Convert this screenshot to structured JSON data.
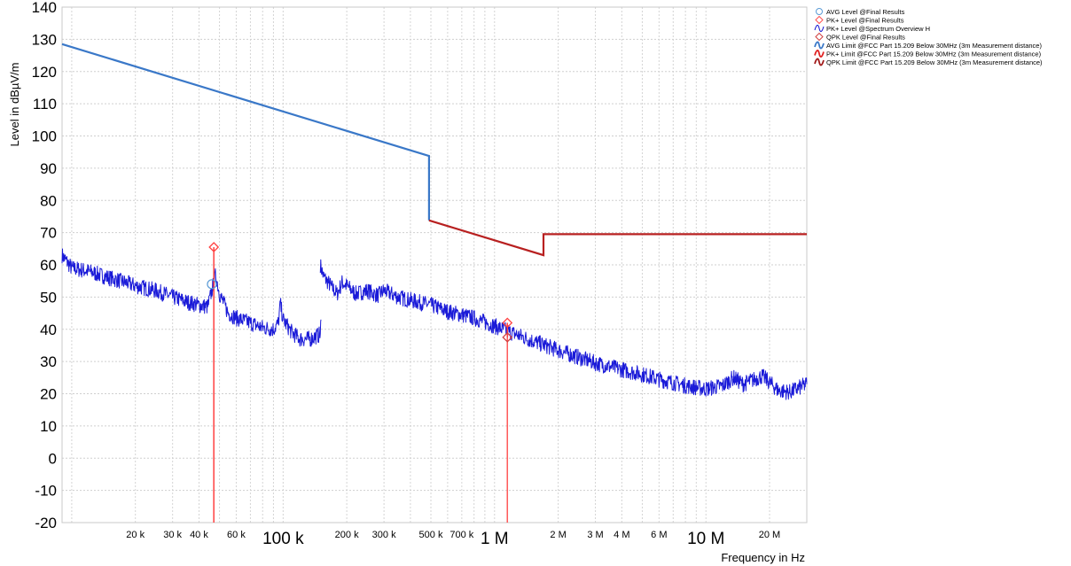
{
  "chart_data": {
    "type": "line",
    "title": "",
    "xlabel": "Frequency in Hz",
    "ylabel": "Level in dBµV/m",
    "x_scale": "log",
    "xlim": [
      9000,
      30000000
    ],
    "ylim": [
      -20,
      140
    ],
    "grid": true,
    "legend_position": "top-right",
    "yticks": [
      -20,
      -10,
      0,
      10,
      20,
      30,
      40,
      50,
      60,
      70,
      80,
      90,
      100,
      110,
      120,
      130,
      140
    ],
    "xticks_small": [
      {
        "value": 20000,
        "label": "20 k"
      },
      {
        "value": 30000,
        "label": "30 k"
      },
      {
        "value": 40000,
        "label": "40 k"
      },
      {
        "value": 60000,
        "label": "60 k"
      },
      {
        "value": 200000,
        "label": "200 k"
      },
      {
        "value": 300000,
        "label": "300 k"
      },
      {
        "value": 500000,
        "label": "500 k"
      },
      {
        "value": 700000,
        "label": "700 k"
      },
      {
        "value": 2000000,
        "label": "2 M"
      },
      {
        "value": 3000000,
        "label": "3 M"
      },
      {
        "value": 4000000,
        "label": "4 M"
      },
      {
        "value": 6000000,
        "label": "6 M"
      },
      {
        "value": 20000000,
        "label": "20 M"
      }
    ],
    "xticks_big": [
      {
        "value": 100000,
        "label": "100 k"
      },
      {
        "value": 1000000,
        "label": "1 M"
      },
      {
        "value": 10000000,
        "label": "10 M"
      }
    ],
    "legend": [
      {
        "label": "AVG Level @Final Results",
        "symbol": "circle",
        "color": "#5b9bd5"
      },
      {
        "label": "PK+ Level @Final Results",
        "symbol": "diamond",
        "color": "#ff5050"
      },
      {
        "label": "PK+ Level @Spectrum Overview H",
        "symbol": "wave",
        "color": "#1010d0"
      },
      {
        "label": "QPK Level @Final Results",
        "symbol": "diamond",
        "color": "#d04040"
      },
      {
        "label": "AVG Limit @FCC Part 15.209 Below 30MHz (3m Measurement distance)",
        "symbol": "wave",
        "color": "#3a78c8"
      },
      {
        "label": "PK+ Limit @FCC Part 15.209 Below 30MHz (3m Measurement distance)",
        "symbol": "wave",
        "color": "#e02020"
      },
      {
        "label": "QPK Limit @FCC Part 15.209 Below 30MHz (3m Measurement distance)",
        "symbol": "wave",
        "color": "#a01818"
      }
    ],
    "series": [
      {
        "name": "AVG Limit @FCC Part 15.209 Below 30MHz (3m Measurement distance)",
        "color": "#3a78c8",
        "points": [
          [
            9000,
            128.5
          ],
          [
            490000,
            93.8
          ],
          [
            490000,
            73.8
          ]
        ]
      },
      {
        "name": "PK+ Limit @FCC Part 15.209 Below 30MHz (3m Measurement distance)",
        "color": "#b82020",
        "points": [
          [
            490000,
            73.8
          ],
          [
            1705000,
            63.0
          ],
          [
            1705000,
            69.5
          ],
          [
            30000000,
            69.5
          ]
        ]
      },
      {
        "name": "PK+ Level @Spectrum Overview H",
        "color": "#1a1ad8",
        "segments": [
          [
            [
              9000,
              63
            ],
            [
              10000,
              59
            ],
            [
              12000,
              58
            ],
            [
              15000,
              56
            ],
            [
              18000,
              54.5
            ],
            [
              20000,
              53.5
            ],
            [
              25000,
              52
            ],
            [
              30000,
              50
            ],
            [
              35000,
              48.5
            ],
            [
              40000,
              47.5
            ],
            [
              44000,
              47
            ],
            [
              46000,
              52
            ],
            [
              48000,
              57
            ],
            [
              50000,
              51
            ],
            [
              55000,
              45
            ],
            [
              60000,
              43.5
            ],
            [
              70000,
              42
            ],
            [
              80000,
              40.5
            ],
            [
              90000,
              40
            ],
            [
              95000,
              42
            ],
            [
              97000,
              48
            ],
            [
              100000,
              43
            ],
            [
              110000,
              39
            ],
            [
              120000,
              37
            ],
            [
              135000,
              37
            ],
            [
              150000,
              38.5
            ],
            [
              151000,
              43
            ]
          ],
          [
            [
              150000,
              60
            ],
            [
              155000,
              56.5
            ],
            [
              170000,
              53
            ],
            [
              180000,
              51
            ],
            [
              190000,
              54.5
            ],
            [
              200000,
              53.5
            ],
            [
              220000,
              51
            ],
            [
              250000,
              52
            ],
            [
              280000,
              50.5
            ],
            [
              300000,
              52
            ],
            [
              350000,
              50
            ],
            [
              400000,
              49
            ],
            [
              500000,
              47.5
            ],
            [
              600000,
              45.5
            ],
            [
              700000,
              44.5
            ],
            [
              800000,
              43.5
            ],
            [
              1000000,
              41
            ],
            [
              1200000,
              39
            ],
            [
              1500000,
              36.5
            ],
            [
              2000000,
              33.5
            ],
            [
              3000000,
              29.5
            ],
            [
              4000000,
              27.5
            ],
            [
              5000000,
              26
            ],
            [
              6000000,
              24.5
            ],
            [
              8000000,
              22.5
            ],
            [
              10000000,
              21.5
            ],
            [
              12000000,
              22.5
            ],
            [
              13500000,
              25
            ],
            [
              15000000,
              23
            ],
            [
              17000000,
              24.5
            ],
            [
              18500000,
              25.5
            ],
            [
              20000000,
              23.5
            ],
            [
              22000000,
              21
            ],
            [
              25000000,
              20.5
            ],
            [
              30000000,
              23
            ]
          ]
        ]
      }
    ],
    "markers": {
      "avg_final": [
        {
          "x": 46000,
          "y": 54
        }
      ],
      "pk_final": [
        {
          "x": 47000,
          "y": 65.5
        },
        {
          "x": 1150000,
          "y": 42
        }
      ],
      "qpk_final": [
        {
          "x": 1150000,
          "y": 37.5
        }
      ]
    }
  }
}
